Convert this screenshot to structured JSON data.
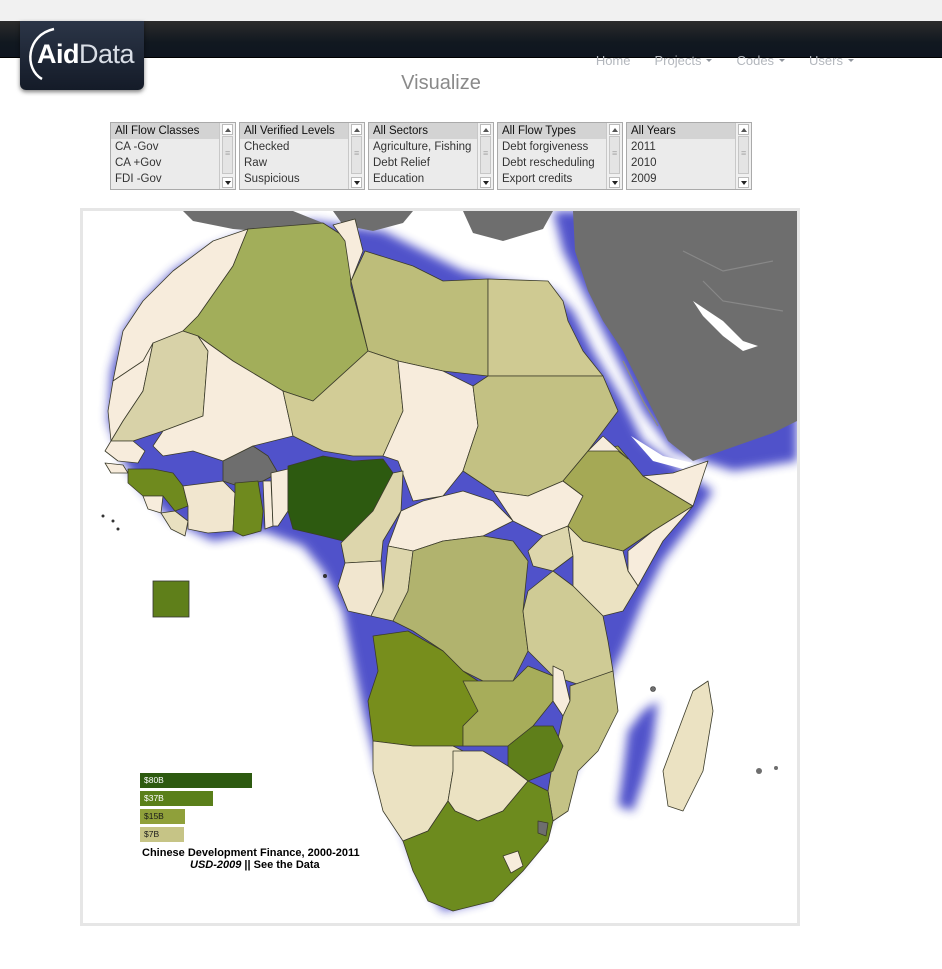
{
  "brand": {
    "logo_bold": "Aid",
    "logo_regular": "Data"
  },
  "nav": {
    "items": [
      {
        "label": "Home",
        "dropdown": false
      },
      {
        "label": "Projects",
        "dropdown": true
      },
      {
        "label": "Codes",
        "dropdown": true
      },
      {
        "label": "Users",
        "dropdown": true
      }
    ]
  },
  "page": {
    "title": "Visualize"
  },
  "filters": [
    {
      "name": "flow-classes",
      "options": [
        "All Flow Classes",
        "CA -Gov",
        "CA +Gov",
        "FDI -Gov"
      ],
      "selected": 0
    },
    {
      "name": "verified-levels",
      "options": [
        "All Verified Levels",
        "Checked",
        "Raw",
        "Suspicious"
      ],
      "selected": 0
    },
    {
      "name": "sectors",
      "options": [
        "All Sectors",
        "Agriculture, Fishing",
        "Debt Relief",
        "Education"
      ],
      "selected": 0
    },
    {
      "name": "flow-types",
      "options": [
        "All Flow Types",
        "Debt forgiveness",
        "Debt rescheduling",
        "Export credits"
      ],
      "selected": 0
    },
    {
      "name": "years",
      "options": [
        "All Years",
        "2011",
        "2010",
        "2009"
      ],
      "selected": 0
    }
  ],
  "map": {
    "colors": {
      "ocean": "#ffffff",
      "other_land": "#6e6e6e",
      "coast_glow": "#3a3ec8",
      "border": "#3b3b2a",
      "no_data": "#f7ecdc",
      "tier_low": "#e8e0c0",
      "tier_mid": "#bfbf80",
      "tier_high": "#9aa84a",
      "tier_top": "#5f7f1a",
      "tier_max": "#2d5a10"
    }
  },
  "legend": {
    "bars": [
      {
        "label": "$80B",
        "value": 80,
        "color": "#2d5a10",
        "text_color": "#ffffff"
      },
      {
        "label": "$37B",
        "value": 37,
        "color": "#5a7f1a",
        "text_color": "#ffffff"
      },
      {
        "label": "$15B",
        "value": 15,
        "color": "#8fa03a",
        "text_color": "#1a1a1a"
      },
      {
        "label": "$7B",
        "value": 7,
        "color": "#c6c486",
        "text_color": "#1a1a1a"
      }
    ],
    "title": "Chinese Development Finance, 2000-2011",
    "unit": "USD-2009",
    "separator": " || ",
    "link": "See the Data"
  }
}
